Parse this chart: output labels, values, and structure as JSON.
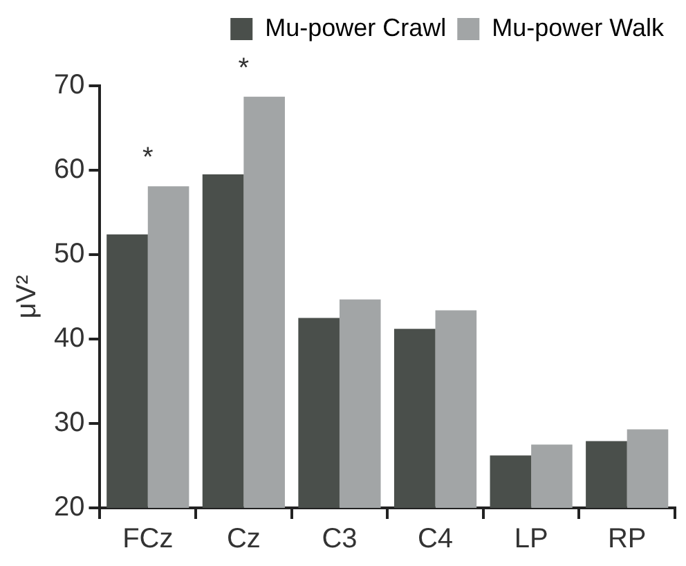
{
  "chart_data": {
    "type": "bar",
    "ylabel": "μV²",
    "categories": [
      "FCz",
      "Cz",
      "C3",
      "C4",
      "LP",
      "RP"
    ],
    "series": [
      {
        "name": "Mu-power Crawl",
        "color": "#4a4f4b",
        "values": [
          52.4,
          59.5,
          42.5,
          41.2,
          26.2,
          27.9
        ]
      },
      {
        "name": "Mu-power Walk",
        "color": "#a2a5a6",
        "values": [
          58.1,
          68.7,
          44.7,
          43.4,
          27.5,
          29.3
        ]
      }
    ],
    "ylim": [
      20,
      70
    ],
    "yticks": [
      20,
      30,
      40,
      50,
      60,
      70
    ],
    "grid": false,
    "legend": "top right",
    "annotations": [
      {
        "text": "*",
        "x": "FCz",
        "y": 58.1
      },
      {
        "text": "*",
        "x": "Cz",
        "y": 68.7
      }
    ]
  }
}
